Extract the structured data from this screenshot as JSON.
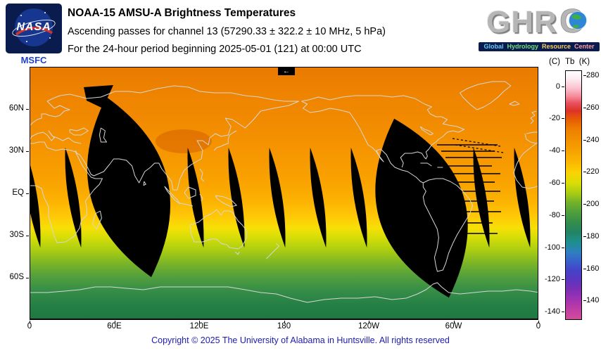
{
  "header": {
    "nasa": {
      "logo_text": "NASA",
      "center": "MSFC"
    },
    "title": "NOAA-15 AMSU-A Brightness Temperatures",
    "subtitle": "Ascending passes for channel 13 (57290.33 ± 322.2 ± 10 MHz, 5 hPa)",
    "period_line": "For the 24-hour period beginning 2025-05-01 (121) at 00:00 UTC",
    "ghrc": {
      "letters_left": "GHR",
      "letter_right": "C",
      "tagline_words": [
        "Global",
        "Hydrology",
        "Resource",
        "Center"
      ]
    }
  },
  "map": {
    "direction_arrow": "←",
    "y_tick_labels": [
      "60N",
      "30N",
      "EQ",
      "30S",
      "60S"
    ],
    "x_tick_labels": [
      "0",
      "60E",
      "120E",
      "180",
      "120W",
      "60W",
      "0"
    ]
  },
  "colorbar": {
    "celsius_header": "(C)",
    "kelvin_header": "Tb  (K)",
    "celsius_ticks": [
      "0",
      "-20",
      "-40",
      "-60",
      "-80",
      "-100",
      "-120",
      "-140"
    ],
    "kelvin_ticks": [
      "280",
      "260",
      "240",
      "220",
      "200",
      "180",
      "160",
      "140"
    ]
  },
  "footer": "Copyright © 2025 The University of Alabama in Huntsville.  All rights reserved",
  "chart_data": {
    "type": "heatmap",
    "title": "NOAA-15 AMSU-A Brightness Temperatures",
    "subtitle": "Ascending passes for channel 13 (57290.33 ± 322.2 ± 10 MHz, 5 hPa)",
    "period": "For the 24-hour period beginning 2025-05-01 (121) at 00:00 UTC",
    "projection": "equirectangular world map, longitude 0 eastward through 180 back to 0, latitude 90N to 90S",
    "x_tick_labels": [
      "0",
      "60E",
      "120E",
      "180",
      "120W",
      "60W",
      "0"
    ],
    "y_tick_labels": [
      "60N",
      "30N",
      "EQ",
      "30S",
      "60S"
    ],
    "grid": false,
    "colorbar": {
      "position": "right",
      "primary_label": "Tb (K)",
      "secondary_label": "(C)",
      "kelvin_ticks": [
        280,
        260,
        240,
        220,
        200,
        180,
        160,
        140
      ],
      "celsius_ticks": [
        0,
        -20,
        -40,
        -60,
        -80,
        -100,
        -120,
        -140
      ],
      "approx_range_k": [
        130,
        285
      ],
      "color_scale_high_to_low": [
        "white",
        "pink",
        "red",
        "orange",
        "yellow",
        "yellow-green",
        "green",
        "dark-green",
        "teal",
        "blue",
        "indigo",
        "violet",
        "magenta"
      ]
    },
    "zonal_mean_tb_k": {
      "latitude": [
        90,
        70,
        50,
        30,
        10,
        0,
        -10,
        -20,
        -30,
        -40,
        -50,
        -60,
        -70,
        -80,
        -90
      ],
      "tb_k": [
        241,
        241,
        240,
        238,
        236,
        235,
        233,
        229,
        224,
        217,
        210,
        204,
        199,
        196,
        194
      ]
    },
    "no_data_regions": {
      "color": "black",
      "description": "Lens-shaped gaps between ascending swaths centered near the equator roughly every 29 degrees of longitude, plus two large unsampled swaths (one over east Africa / west Indian Ocean, one over South America / west Atlantic) with horizontal dropout scan lines east of South America."
    }
  }
}
